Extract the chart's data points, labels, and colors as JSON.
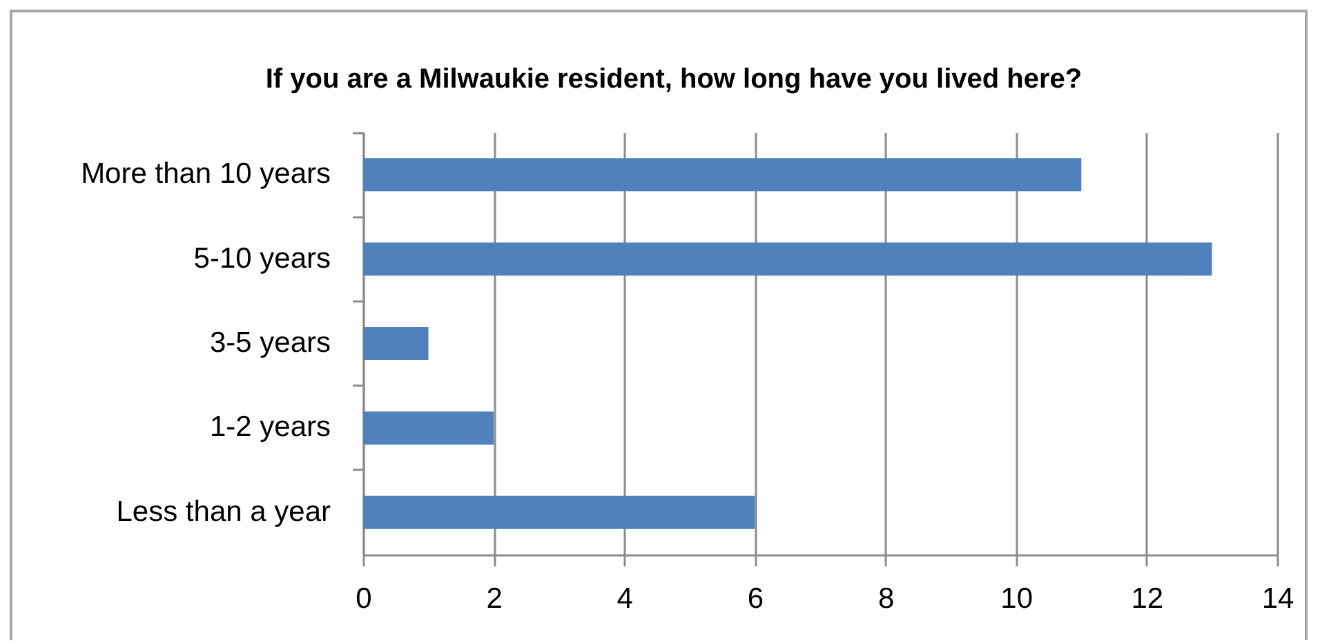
{
  "chart_data": {
    "type": "bar",
    "orientation": "horizontal",
    "title": "If you are a Milwaukie resident, how long have you lived here?",
    "categories": [
      "More than 10 years",
      "5-10 years",
      "3-5 years",
      "1-2 years",
      "Less than a year"
    ],
    "values": [
      11,
      13,
      1,
      2,
      6
    ],
    "color": "#4f81bd",
    "xlim": [
      0,
      14
    ],
    "xticks": [
      0,
      2,
      4,
      6,
      8,
      10,
      12,
      14
    ],
    "grid": "x"
  }
}
